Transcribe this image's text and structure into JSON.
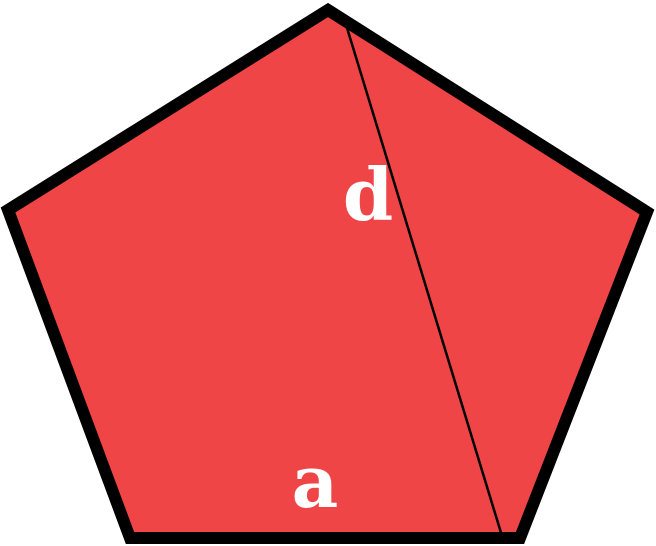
{
  "diagram": {
    "labels": {
      "diagonal": "d",
      "side": "a"
    },
    "colors": {
      "fill": "#ef4547",
      "outline": "#000000",
      "label": "#ffffff"
    }
  }
}
